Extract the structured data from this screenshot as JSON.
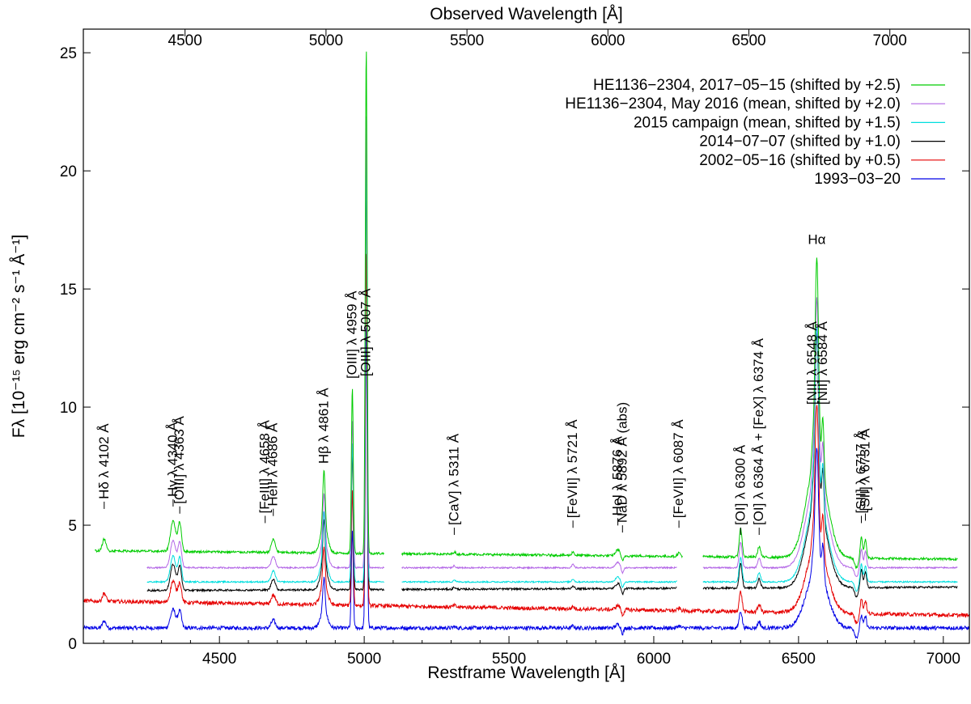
{
  "chart_data": {
    "type": "line",
    "title": "",
    "xlabel": "Restframe Wavelength [Å]",
    "x2label": "Observed Wavelength [Å]",
    "ylabel": "Fλ [10⁻¹⁵ erg cm⁻² s⁻¹ Å⁻¹]",
    "xlim": [
      4030,
      7090
    ],
    "ylim": [
      0,
      26
    ],
    "x2lim": [
      4143,
      7289
    ],
    "redshift": 0.0271,
    "x_ticks": [
      4500,
      5000,
      5500,
      6000,
      6500,
      7000
    ],
    "y_ticks": [
      0,
      5,
      10,
      15,
      20,
      25
    ],
    "x2_ticks": [
      4500,
      5000,
      5500,
      6000,
      6500,
      7000
    ],
    "grid": false,
    "legend_position": "top-right",
    "series": [
      {
        "name": "HE1136−2304, 2017−05−15  (shifted by +2.5)",
        "color": "#00cc00",
        "segments": [
          [
            4070,
            5070
          ],
          [
            5130,
            6100
          ],
          [
            6170,
            7050
          ]
        ],
        "base": 3.75,
        "slope": -0.00012,
        "offset": 2.5,
        "noise": 0.05,
        "line_scale": 1.0
      },
      {
        "name": "HE1136−2304, May 2016 (mean, shifted by +2.0)",
        "color": "#b366e6",
        "segments": [
          [
            4250,
            5070
          ],
          [
            5130,
            6080
          ],
          [
            6170,
            7050
          ]
        ],
        "base": 3.2,
        "slope": 0.0,
        "offset": 2.0,
        "noise": 0.03,
        "line_scale": 0.9
      },
      {
        "name": "2015 campaign (mean, shifted by +1.5)",
        "color": "#00dede",
        "segments": [
          [
            4250,
            5070
          ],
          [
            5130,
            6080
          ],
          [
            6170,
            7050
          ]
        ],
        "base": 2.6,
        "slope": 0.0,
        "offset": 1.5,
        "noise": 0.03,
        "line_scale": 0.85
      },
      {
        "name": "2014−07−07 (shifted by +1.0)",
        "color": "#000000",
        "segments": [
          [
            4250,
            5070
          ],
          [
            5130,
            6080
          ],
          [
            6170,
            7050
          ]
        ],
        "base": 2.3,
        "slope": 5e-05,
        "offset": 1.0,
        "noise": 0.04,
        "line_scale": 0.85
      },
      {
        "name": "2002−05−16 (shifted by +0.5)",
        "color": "#e60000",
        "segments": [
          [
            4030,
            7090
          ]
        ],
        "base": 1.5,
        "slope": -0.0002,
        "offset": 0.5,
        "noise": 0.08,
        "line_scale": 0.7
      },
      {
        "name": "1993−03−20",
        "color": "#0000e6",
        "segments": [
          [
            4030,
            7090
          ]
        ],
        "base": 0.65,
        "slope": 0.0,
        "offset": 0.0,
        "noise": 0.08,
        "line_scale": 0.6
      }
    ],
    "emission_lines": [
      {
        "center": 4102,
        "amp": 0.5,
        "width": 6
      },
      {
        "center": 4340,
        "amp": 1.3,
        "width": 9
      },
      {
        "center": 4363,
        "amp": 1.2,
        "width": 6
      },
      {
        "center": 4686,
        "amp": 0.55,
        "width": 7
      },
      {
        "center": 4861,
        "amp": 1.2,
        "width": 12
      },
      {
        "center": 4861,
        "amp": 2.3,
        "width": 4
      },
      {
        "center": 4959,
        "amp": 7.0,
        "width": 3.2
      },
      {
        "center": 5007,
        "amp": 21.5,
        "width": 3.2
      },
      {
        "center": 5311,
        "amp": 0.1,
        "width": 4
      },
      {
        "center": 5721,
        "amp": 0.15,
        "width": 4
      },
      {
        "center": 5876,
        "amp": 0.25,
        "width": 8
      },
      {
        "center": 6087,
        "amp": 0.15,
        "width": 5
      },
      {
        "center": 6300,
        "amp": 1.2,
        "width": 5
      },
      {
        "center": 6364,
        "amp": 0.45,
        "width": 5
      },
      {
        "center": 6563,
        "amp": 4.2,
        "width": 35
      },
      {
        "center": 6563,
        "amp": 8.5,
        "width": 6
      },
      {
        "center": 6548,
        "amp": 0.8,
        "width": 4
      },
      {
        "center": 6584,
        "amp": 2.4,
        "width": 4
      },
      {
        "center": 6717,
        "amp": 0.9,
        "width": 4
      },
      {
        "center": 6731,
        "amp": 0.8,
        "width": 4
      }
    ],
    "absorption_lines": [
      {
        "center": 5892,
        "amp": 0.25,
        "width": 4
      },
      {
        "center": 6700,
        "amp": 0.4,
        "width": 6
      }
    ],
    "line_labels": [
      {
        "text": "Hδ λ 4102 Å",
        "x": 4102,
        "y": 6.1,
        "tick": true
      },
      {
        "text": "Hγ λ 4340 Å",
        "x": 4340,
        "y": 6.2,
        "tick": true
      },
      {
        "text": "[OIII] λ 4363 Å",
        "x": 4363,
        "y": 5.9,
        "tick": true
      },
      {
        "text": "[FeIII] λ 4658 Å",
        "x": 4658,
        "y": 5.5,
        "tick": true
      },
      {
        "text": "HeII λ 4686 Å",
        "x": 4686,
        "y": 5.8,
        "tick": true
      },
      {
        "text": "Hβ λ 4861 Å",
        "x": 4861,
        "y": 7.6,
        "tick": false
      },
      {
        "text": "[OIII] λ 4959 Å",
        "x": 4959,
        "y": 11.2,
        "tick": false
      },
      {
        "text": "[OIII] λ 5007 Å",
        "x": 5007,
        "y": 11.3,
        "tick": false
      },
      {
        "text": "[CaV] λ 5311 Å",
        "x": 5311,
        "y": 5.0,
        "tick": true
      },
      {
        "text": "[FeVII] λ 5721 Å",
        "x": 5721,
        "y": 5.3,
        "tick": true
      },
      {
        "text": "HeI λ 5876 Å",
        "x": 5876,
        "y": 5.4,
        "tick": true
      },
      {
        "text": "NaD λ 5892 Å (abs)",
        "x": 5892,
        "y": 5.1,
        "tick": true
      },
      {
        "text": "[FeVII] λ 6087 Å",
        "x": 6087,
        "y": 5.3,
        "tick": true
      },
      {
        "text": "[OI] λ 6300 Å",
        "x": 6300,
        "y": 5.0,
        "tick": true
      },
      {
        "text": "[OI] λ 6364 Å + [FeX] λ 6374 Å",
        "x": 6364,
        "y": 5.0,
        "tick": true
      },
      {
        "text": "[NII] λ 6548 Å",
        "x": 6548,
        "y": 10.1,
        "tick": false
      },
      {
        "text": "[NII] λ 6584 Å",
        "x": 6584,
        "y": 10.1,
        "tick": false
      },
      {
        "text": "[SII] λ 6717 Å",
        "x": 6717,
        "y": 5.5,
        "tick": true
      },
      {
        "text": "[SII] λ 6731 Å",
        "x": 6731,
        "y": 5.6,
        "tick": true
      }
    ],
    "halpha_label": {
      "text": "Hα",
      "x": 6563,
      "y": 16.9
    }
  }
}
